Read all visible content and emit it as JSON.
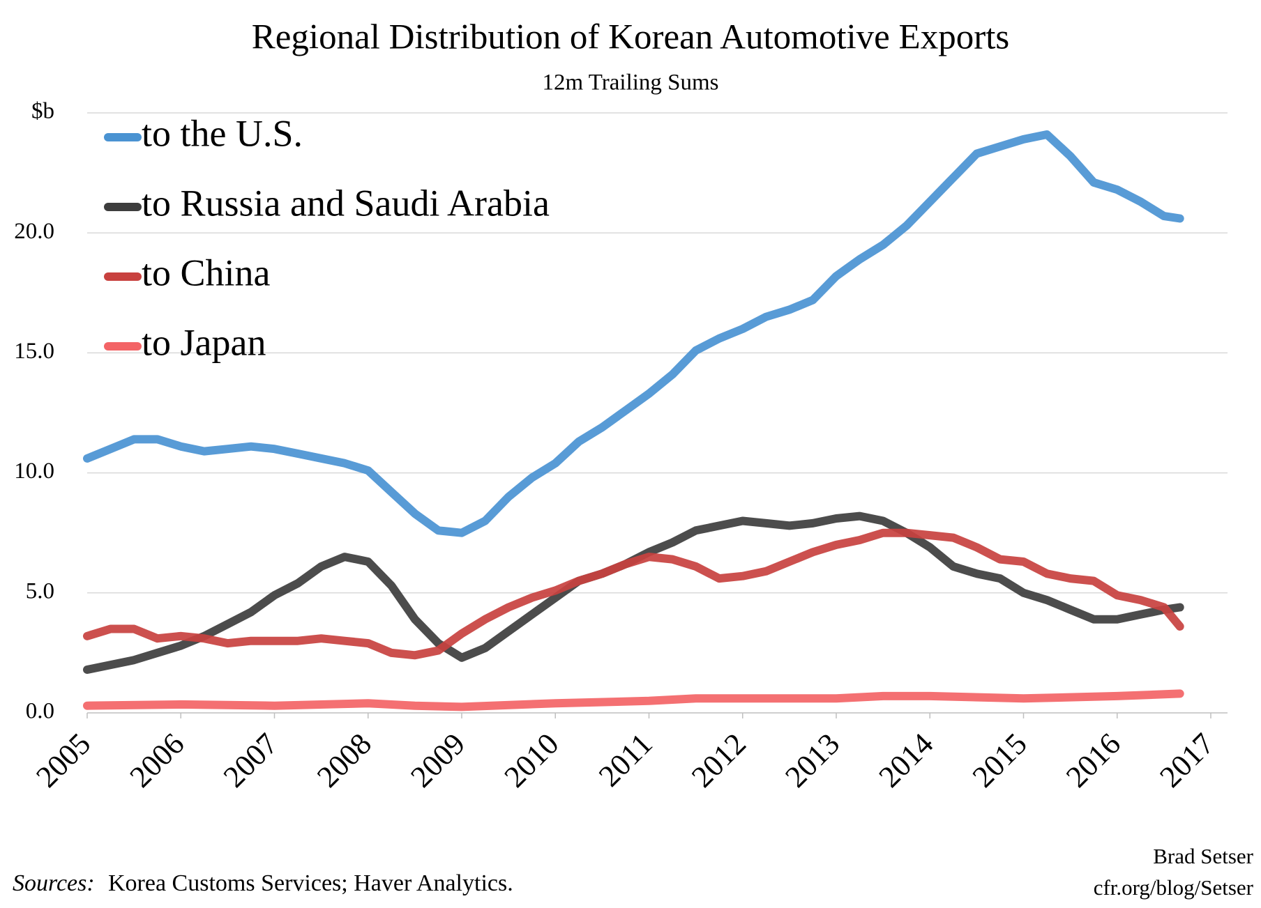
{
  "chart_data": {
    "type": "line",
    "title": "Regional Distribution of Korean Automotive Exports",
    "subtitle": "12m Trailing Sums",
    "source_label": "Sources:",
    "source": "Korea Customs Services; Haver Analytics.",
    "credit": [
      "Brad Setser",
      "cfr.org/blog/Setser"
    ],
    "xlim": [
      2005,
      2017
    ],
    "xticks": [
      2005,
      2006,
      2007,
      2008,
      2009,
      2010,
      2011,
      2012,
      2013,
      2014,
      2015,
      2016,
      2017
    ],
    "ylim": [
      0,
      25
    ],
    "yticks": [
      {
        "value": 0,
        "label": "0.0"
      },
      {
        "value": 5,
        "label": "5.0"
      },
      {
        "value": 10,
        "label": "10.0"
      },
      {
        "value": 15,
        "label": "15.0"
      },
      {
        "value": 20,
        "label": "20.0"
      },
      {
        "value": 25,
        "label": "$b"
      }
    ],
    "grid": true,
    "legend": "upper left",
    "series": [
      {
        "name": "to the U.S.",
        "color": "#4a93d2",
        "x": [
          2005,
          2005.25,
          2005.5,
          2005.75,
          2006,
          2006.25,
          2006.5,
          2006.75,
          2007,
          2007.25,
          2007.5,
          2007.75,
          2008,
          2008.25,
          2008.5,
          2008.75,
          2009,
          2009.25,
          2009.5,
          2009.75,
          2010,
          2010.25,
          2010.5,
          2010.75,
          2011,
          2011.25,
          2011.5,
          2011.75,
          2012,
          2012.25,
          2012.5,
          2012.75,
          2013,
          2013.25,
          2013.5,
          2013.75,
          2014,
          2014.25,
          2014.5,
          2014.75,
          2015,
          2015.25,
          2015.5,
          2015.75,
          2016,
          2016.25,
          2016.5,
          2016.67
        ],
        "values": [
          10.6,
          11.0,
          11.4,
          11.4,
          11.1,
          10.9,
          11.0,
          11.1,
          11.0,
          10.8,
          10.6,
          10.4,
          10.1,
          9.2,
          8.3,
          7.6,
          7.5,
          8.0,
          9.0,
          9.8,
          10.4,
          11.3,
          11.9,
          12.6,
          13.3,
          14.1,
          15.1,
          15.6,
          16.0,
          16.5,
          16.8,
          17.2,
          18.2,
          18.9,
          19.5,
          20.3,
          21.3,
          22.3,
          23.3,
          23.6,
          23.9,
          24.1,
          23.2,
          22.1,
          21.8,
          21.3,
          20.7,
          20.6
        ]
      },
      {
        "name": "to Russia and Saudi Arabia",
        "color": "#3d3d3d",
        "x": [
          2005,
          2005.25,
          2005.5,
          2005.75,
          2006,
          2006.25,
          2006.5,
          2006.75,
          2007,
          2007.25,
          2007.5,
          2007.75,
          2008,
          2008.25,
          2008.5,
          2008.75,
          2009,
          2009.25,
          2009.5,
          2009.75,
          2010,
          2010.25,
          2010.5,
          2010.75,
          2011,
          2011.25,
          2011.5,
          2011.75,
          2012,
          2012.25,
          2012.5,
          2012.75,
          2013,
          2013.25,
          2013.5,
          2013.75,
          2014,
          2014.25,
          2014.5,
          2014.75,
          2015,
          2015.25,
          2015.5,
          2015.75,
          2016,
          2016.25,
          2016.5,
          2016.67
        ],
        "values": [
          1.8,
          2.0,
          2.2,
          2.5,
          2.8,
          3.2,
          3.7,
          4.2,
          4.9,
          5.4,
          6.1,
          6.5,
          6.3,
          5.3,
          3.9,
          2.9,
          2.3,
          2.7,
          3.4,
          4.1,
          4.8,
          5.5,
          5.8,
          6.2,
          6.7,
          7.1,
          7.6,
          7.8,
          8.0,
          7.9,
          7.8,
          7.9,
          8.1,
          8.2,
          8.0,
          7.5,
          6.9,
          6.1,
          5.8,
          5.6,
          5.0,
          4.7,
          4.3,
          3.9,
          3.9,
          4.1,
          4.3,
          4.4
        ]
      },
      {
        "name": "to China",
        "color": "#c8413f",
        "x": [
          2005,
          2005.25,
          2005.5,
          2005.75,
          2006,
          2006.25,
          2006.5,
          2006.75,
          2007,
          2007.25,
          2007.5,
          2007.75,
          2008,
          2008.25,
          2008.5,
          2008.75,
          2009,
          2009.25,
          2009.5,
          2009.75,
          2010,
          2010.25,
          2010.5,
          2010.75,
          2011,
          2011.25,
          2011.5,
          2011.75,
          2012,
          2012.25,
          2012.5,
          2012.75,
          2013,
          2013.25,
          2013.5,
          2013.75,
          2014,
          2014.25,
          2014.5,
          2014.75,
          2015,
          2015.25,
          2015.5,
          2015.75,
          2016,
          2016.25,
          2016.5,
          2016.67
        ],
        "values": [
          3.2,
          3.5,
          3.5,
          3.1,
          3.2,
          3.1,
          2.9,
          3.0,
          3.0,
          3.0,
          3.1,
          3.0,
          2.9,
          2.5,
          2.4,
          2.6,
          3.3,
          3.9,
          4.4,
          4.8,
          5.1,
          5.5,
          5.8,
          6.2,
          6.5,
          6.4,
          6.1,
          5.6,
          5.7,
          5.9,
          6.3,
          6.7,
          7.0,
          7.2,
          7.5,
          7.5,
          7.4,
          7.3,
          6.9,
          6.4,
          6.3,
          5.8,
          5.6,
          5.5,
          4.9,
          4.7,
          4.4,
          3.6
        ]
      },
      {
        "name": "to Japan",
        "color": "#f36466",
        "x": [
          2005,
          2006,
          2007,
          2008,
          2008.5,
          2009,
          2010,
          2011,
          2011.5,
          2012,
          2013,
          2013.5,
          2014,
          2015,
          2016,
          2016.67
        ],
        "values": [
          0.3,
          0.35,
          0.3,
          0.4,
          0.3,
          0.25,
          0.4,
          0.5,
          0.6,
          0.6,
          0.6,
          0.7,
          0.7,
          0.6,
          0.7,
          0.8
        ]
      }
    ]
  }
}
